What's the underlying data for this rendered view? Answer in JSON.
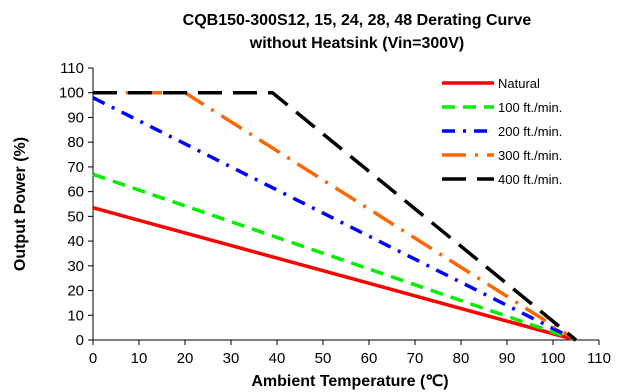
{
  "chart_data": {
    "type": "line",
    "title": "CQB150-300S12, 15, 24, 28, 48 Derating Curve",
    "subtitle": "without Heatsink (Vin=300V)",
    "xlabel": "Ambient Temperature (℃)",
    "ylabel": "Output Power  (%)",
    "xlim": [
      0,
      110
    ],
    "ylim": [
      0,
      110
    ],
    "xticks": [
      0,
      10,
      20,
      30,
      40,
      50,
      60,
      70,
      80,
      90,
      100,
      110
    ],
    "yticks": [
      0,
      10,
      20,
      30,
      40,
      50,
      60,
      70,
      80,
      90,
      100,
      110
    ],
    "grid": false,
    "legend_position": "top-right",
    "series": [
      {
        "name": "Natural",
        "color": "#ff0000",
        "dash": "solid",
        "points": [
          [
            0,
            53.5
          ],
          [
            105,
            0
          ]
        ]
      },
      {
        "name": "100 ft./min.",
        "color": "#00ee00",
        "dash": "dash",
        "points": [
          [
            0,
            67
          ],
          [
            105,
            0
          ]
        ]
      },
      {
        "name": "200 ft./min.",
        "color": "#0000ff",
        "dash": "dashdot",
        "points": [
          [
            0,
            98
          ],
          [
            105,
            0
          ]
        ]
      },
      {
        "name": "300 ft./min.",
        "color": "#ff6600",
        "dash": "dashdotlong",
        "points": [
          [
            0,
            100
          ],
          [
            20,
            100
          ],
          [
            105,
            0
          ]
        ]
      },
      {
        "name": "400 ft./min.",
        "color": "#000000",
        "dash": "longdash",
        "points": [
          [
            0,
            100
          ],
          [
            39,
            100
          ],
          [
            105,
            0
          ]
        ]
      }
    ]
  }
}
